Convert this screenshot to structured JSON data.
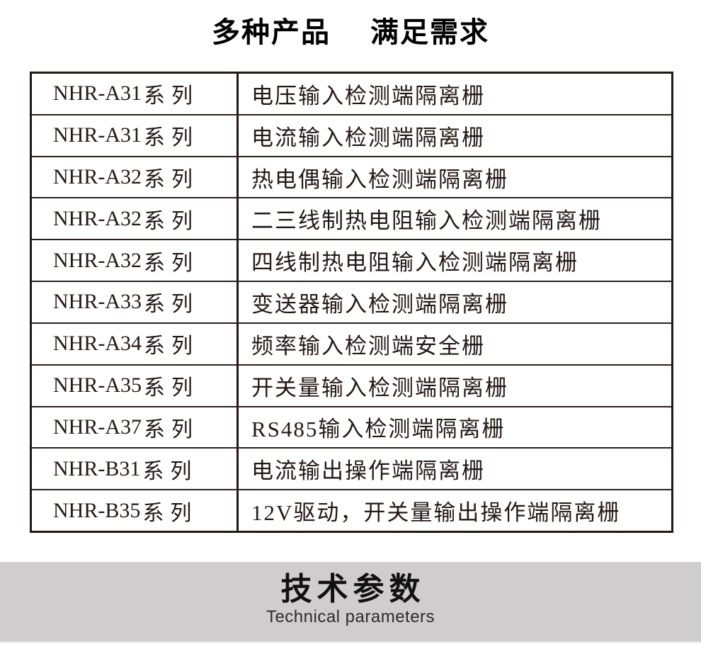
{
  "header": {
    "title_part1": "多种产品",
    "title_part2": "满足需求"
  },
  "table": {
    "rows": [
      {
        "model": "NHR-A31",
        "suffix": "系列",
        "description": "电压输入检测端隔离栅"
      },
      {
        "model": "NHR-A31",
        "suffix": "系列",
        "description": "电流输入检测端隔离栅"
      },
      {
        "model": "NHR-A32",
        "suffix": "系列",
        "description": "热电偶输入检测端隔离栅"
      },
      {
        "model": "NHR-A32",
        "suffix": "系列",
        "description": "二三线制热电阻输入检测端隔离栅"
      },
      {
        "model": "NHR-A32",
        "suffix": "系列",
        "description": "四线制热电阻输入检测端隔离栅"
      },
      {
        "model": "NHR-A33",
        "suffix": "系列",
        "description": "变送器输入检测端隔离栅"
      },
      {
        "model": "NHR-A34",
        "suffix": "系列",
        "description": "频率输入检测端安全栅"
      },
      {
        "model": "NHR-A35",
        "suffix": "系列",
        "description": "开关量输入检测端隔离栅"
      },
      {
        "model": "NHR-A37",
        "suffix": "系列",
        "description": "RS485输入检测端隔离栅"
      },
      {
        "model": "NHR-B31",
        "suffix": "系列",
        "description": "电流输出操作端隔离栅"
      },
      {
        "model": "NHR-B35",
        "suffix": "系列",
        "description": "12V驱动，开关量输出操作端隔离栅"
      }
    ]
  },
  "banner": {
    "title": "技术参数",
    "subtitle": "Technical parameters"
  },
  "colors": {
    "text": "#231815",
    "table_border": "#231815",
    "banner_background": "#d0cdce",
    "page_background": "#ffffff"
  }
}
